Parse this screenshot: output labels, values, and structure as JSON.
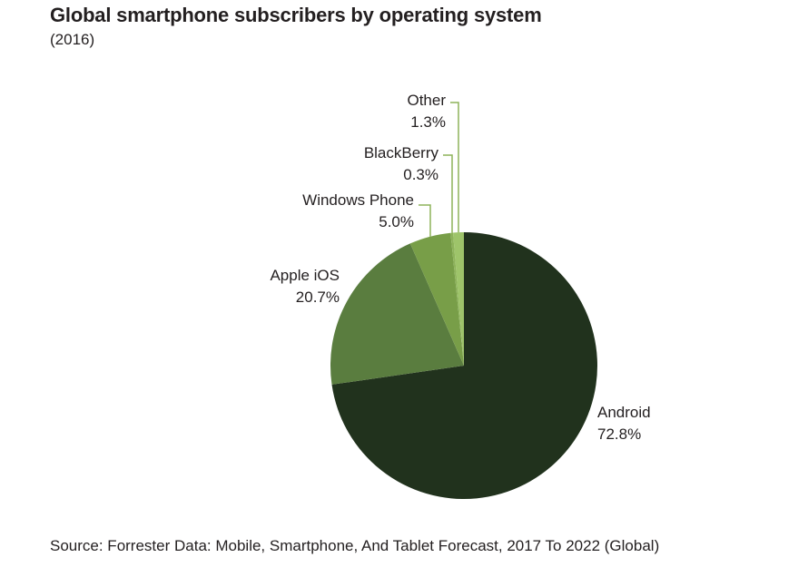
{
  "chart_data": {
    "type": "pie",
    "title": "Global smartphone subscribers by operating system",
    "subtitle": "(2016)",
    "source": "Source: Forrester Data: Mobile, Smartphone, And Tablet Forecast, 2017 To 2022 (Global)",
    "slices": [
      {
        "label": "Android",
        "value": 72.8,
        "value_label": "72.8%",
        "color": "#21321d"
      },
      {
        "label": "Apple iOS",
        "value": 20.7,
        "value_label": "20.7%",
        "color": "#5a7d3f"
      },
      {
        "label": "Windows Phone",
        "value": 5.0,
        "value_label": "5.0%",
        "color": "#789e48"
      },
      {
        "label": "BlackBerry",
        "value": 0.3,
        "value_label": "0.3%",
        "color": "#8db35a"
      },
      {
        "label": "Other",
        "value": 1.3,
        "value_label": "1.3%",
        "color": "#9ec46a"
      }
    ],
    "leader_line_color": "#8db35a",
    "legend": false,
    "labels_position": "outside"
  }
}
